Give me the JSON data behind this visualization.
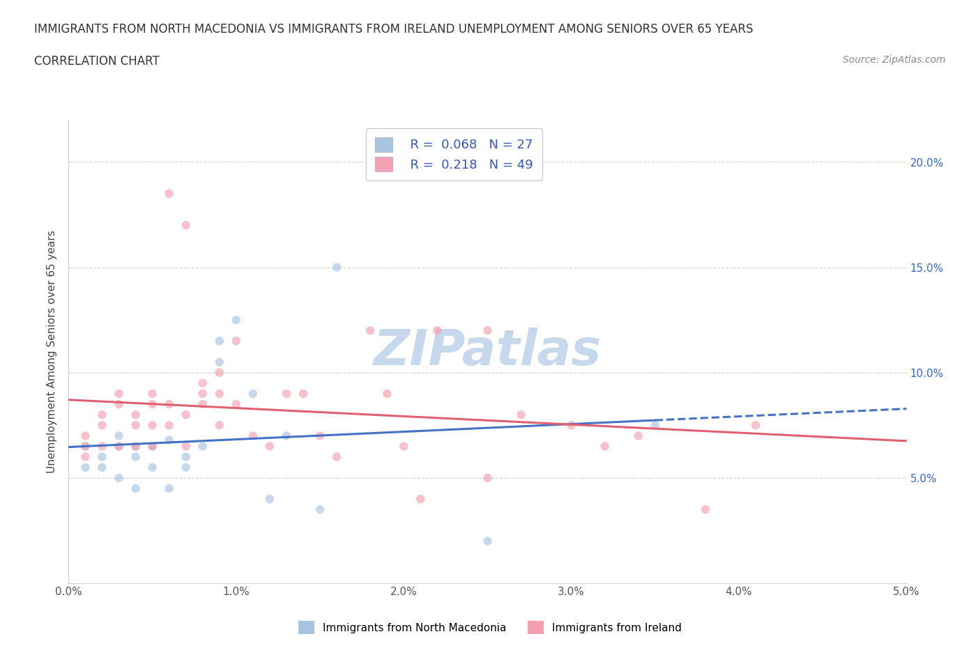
{
  "title": "IMMIGRANTS FROM NORTH MACEDONIA VS IMMIGRANTS FROM IRELAND UNEMPLOYMENT AMONG SENIORS OVER 65 YEARS",
  "subtitle": "CORRELATION CHART",
  "source": "Source: ZipAtlas.com",
  "ylabel": "Unemployment Among Seniors over 65 years",
  "xlim": [
    0.0,
    0.05
  ],
  "ylim": [
    0.0,
    0.22
  ],
  "yticks_right": [
    0.05,
    0.1,
    0.15,
    0.2
  ],
  "ytick_labels_right": [
    "5.0%",
    "10.0%",
    "15.0%",
    "20.0%"
  ],
  "xticks": [
    0.0,
    0.01,
    0.02,
    0.03,
    0.04,
    0.05
  ],
  "xtick_labels": [
    "0.0%",
    "1.0%",
    "2.0%",
    "3.0%",
    "4.0%",
    "5.0%"
  ],
  "series1_name": "Immigrants from North Macedonia",
  "series1_color": "#a8c4e0",
  "series1_R": 0.068,
  "series1_N": 27,
  "series1_x": [
    0.001,
    0.001,
    0.002,
    0.002,
    0.003,
    0.003,
    0.003,
    0.004,
    0.004,
    0.004,
    0.005,
    0.005,
    0.006,
    0.006,
    0.007,
    0.007,
    0.008,
    0.009,
    0.009,
    0.01,
    0.011,
    0.012,
    0.013,
    0.015,
    0.016,
    0.025,
    0.035
  ],
  "series1_y": [
    0.065,
    0.055,
    0.06,
    0.055,
    0.07,
    0.065,
    0.05,
    0.065,
    0.06,
    0.045,
    0.065,
    0.055,
    0.068,
    0.045,
    0.06,
    0.055,
    0.065,
    0.105,
    0.115,
    0.125,
    0.09,
    0.04,
    0.07,
    0.035,
    0.15,
    0.02,
    0.075
  ],
  "series2_name": "Immigrants from Ireland",
  "series2_color": "#f4a0b0",
  "series2_R": 0.218,
  "series2_N": 49,
  "series2_x": [
    0.001,
    0.001,
    0.001,
    0.002,
    0.002,
    0.002,
    0.003,
    0.003,
    0.003,
    0.004,
    0.004,
    0.004,
    0.005,
    0.005,
    0.005,
    0.005,
    0.006,
    0.006,
    0.006,
    0.007,
    0.007,
    0.007,
    0.008,
    0.008,
    0.008,
    0.009,
    0.009,
    0.009,
    0.01,
    0.01,
    0.011,
    0.012,
    0.013,
    0.014,
    0.015,
    0.016,
    0.018,
    0.019,
    0.02,
    0.021,
    0.022,
    0.025,
    0.025,
    0.027,
    0.03,
    0.032,
    0.034,
    0.038,
    0.041
  ],
  "series2_y": [
    0.065,
    0.07,
    0.06,
    0.065,
    0.075,
    0.08,
    0.065,
    0.085,
    0.09,
    0.065,
    0.075,
    0.08,
    0.065,
    0.085,
    0.075,
    0.09,
    0.075,
    0.085,
    0.185,
    0.065,
    0.17,
    0.08,
    0.085,
    0.095,
    0.09,
    0.075,
    0.1,
    0.09,
    0.085,
    0.115,
    0.07,
    0.065,
    0.09,
    0.09,
    0.07,
    0.06,
    0.12,
    0.09,
    0.065,
    0.04,
    0.12,
    0.05,
    0.12,
    0.08,
    0.075,
    0.065,
    0.07,
    0.035,
    0.075
  ],
  "trend1_color": "#4472c4",
  "trend2_color": "#e06070",
  "trend1_solid_end": 0.035,
  "background_color": "#ffffff",
  "grid_color": "#c8c8c8",
  "title_fontsize": 12,
  "subtitle_fontsize": 12,
  "source_fontsize": 10,
  "scatter_size": 80,
  "scatter_alpha": 0.65,
  "trend_linewidth": 2.2,
  "watermark": "ZIPatlas",
  "watermark_color": "#c5d8ec",
  "watermark_fontsize": 52
}
